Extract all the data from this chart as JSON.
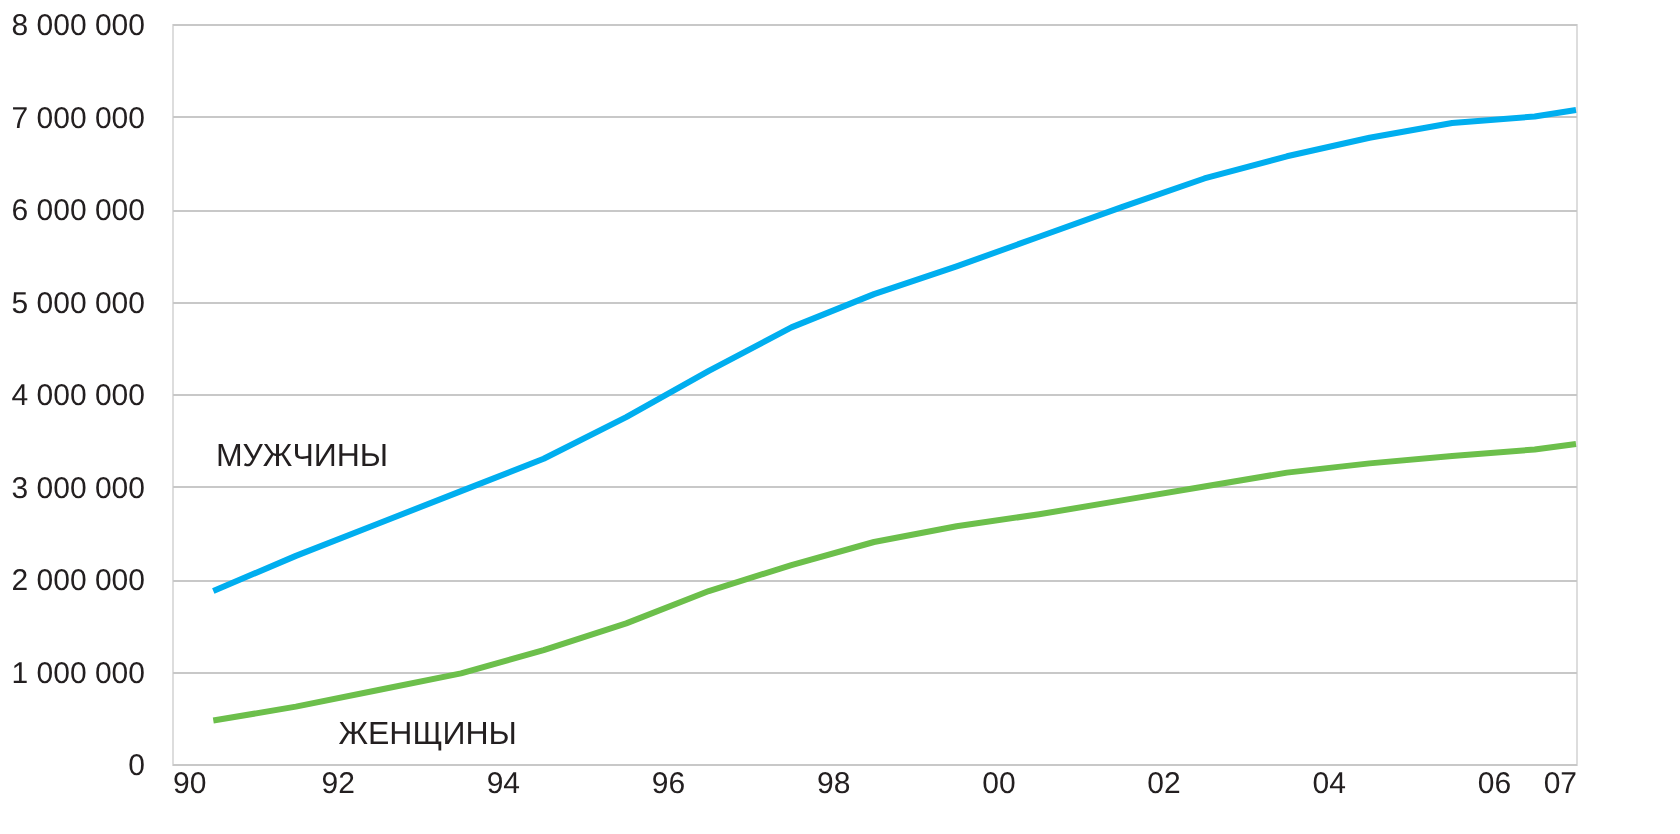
{
  "chart_data": {
    "type": "line",
    "x": [
      1990.5,
      1991.5,
      1992.5,
      1993.5,
      1994.5,
      1995.5,
      1996.5,
      1997.5,
      1998.5,
      1999.5,
      2000.5,
      2001.5,
      2002.5,
      2003.5,
      2004.5,
      2005.5,
      2006.5,
      2007
    ],
    "series": [
      {
        "name": "МУЖЧИНЫ",
        "color": "#00aeef",
        "values": [
          1870000,
          2250000,
          2600000,
          2950000,
          3300000,
          3750000,
          4250000,
          4720000,
          5080000,
          5380000,
          5700000,
          6020000,
          6330000,
          6570000,
          6770000,
          6930000,
          7000000,
          7070000
        ]
      },
      {
        "name": "ЖЕНЩИНЫ",
        "color": "#6cbf4b",
        "values": [
          470000,
          620000,
          800000,
          980000,
          1230000,
          1520000,
          1870000,
          2150000,
          2400000,
          2570000,
          2700000,
          2850000,
          3000000,
          3150000,
          3250000,
          3330000,
          3400000,
          3460000
        ]
      }
    ],
    "xlim": [
      1990,
      2007
    ],
    "xticks": [
      {
        "value": 1990,
        "label": "90"
      },
      {
        "value": 1992,
        "label": "92"
      },
      {
        "value": 1994,
        "label": "94"
      },
      {
        "value": 1996,
        "label": "96"
      },
      {
        "value": 1998,
        "label": "98"
      },
      {
        "value": 2000,
        "label": "00"
      },
      {
        "value": 2002,
        "label": "02"
      },
      {
        "value": 2004,
        "label": "04"
      },
      {
        "value": 2006,
        "label": "06"
      },
      {
        "value": 2007,
        "label": "07"
      }
    ],
    "ylim": [
      0,
      8000000
    ],
    "yticks": [
      {
        "value": 0,
        "label": "0"
      },
      {
        "value": 1000000,
        "label": "1 000 000"
      },
      {
        "value": 2000000,
        "label": "2 000 000"
      },
      {
        "value": 3000000,
        "label": "3 000 000"
      },
      {
        "value": 4000000,
        "label": "4 000 000"
      },
      {
        "value": 5000000,
        "label": "5 000 000"
      },
      {
        "value": 6000000,
        "label": "6 000 000"
      },
      {
        "value": 7000000,
        "label": "7 000 000"
      },
      {
        "value": 8000000,
        "label": "8 000 000"
      }
    ],
    "grid": "y",
    "marker": "none",
    "line_style": "solid"
  }
}
